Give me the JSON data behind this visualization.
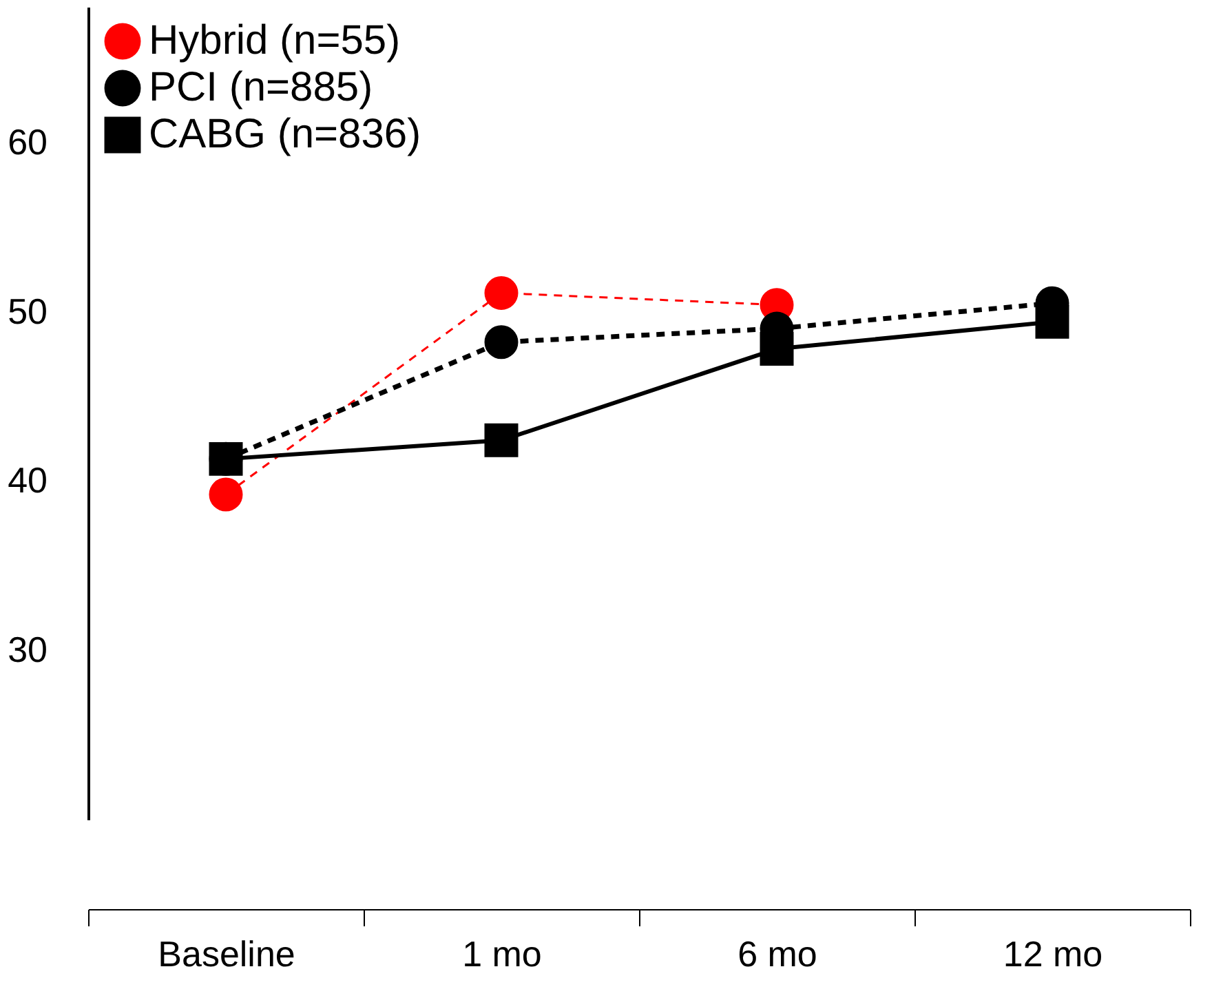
{
  "chart_data": {
    "type": "line",
    "categories": [
      "Baseline",
      "1 mo",
      "6 mo",
      "12 mo"
    ],
    "series": [
      {
        "name": "Hybrid (n=55)",
        "color": "#ff0000",
        "values": [
          39.2,
          51.1,
          50.4,
          null
        ],
        "marker": "circle",
        "line_style": "dashed"
      },
      {
        "name": "PCI (n=885)",
        "color": "#000000",
        "values": [
          41.3,
          48.2,
          49.0,
          50.5
        ],
        "marker": "circle",
        "line_style": "dashed"
      },
      {
        "name": "CABG (n=836)",
        "color": "#000000",
        "values": [
          41.3,
          42.4,
          47.8,
          49.4
        ],
        "marker": "square",
        "line_style": "solid"
      }
    ],
    "ylim": [
      20,
      68
    ],
    "yticks": [
      30,
      40,
      50,
      60
    ],
    "grid": false,
    "legend": "top left"
  }
}
